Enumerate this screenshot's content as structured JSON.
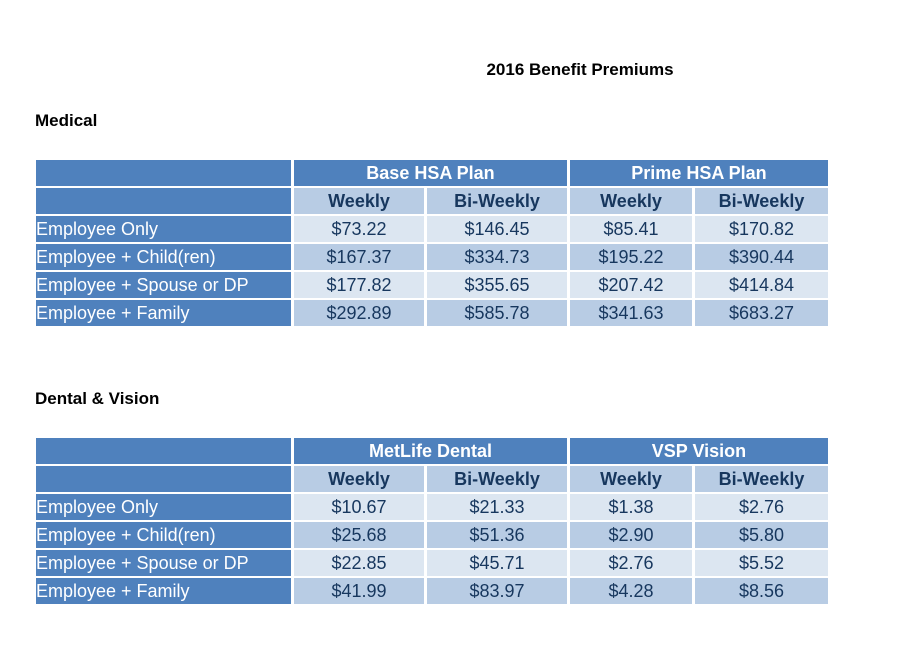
{
  "title": "2016 Benefit Premiums",
  "medical": {
    "heading": "Medical",
    "plans": [
      "Base HSA Plan",
      "Prime HSA Plan"
    ],
    "columns": [
      "Weekly",
      "Bi-Weekly",
      "Weekly",
      "Bi-Weekly"
    ],
    "rows": [
      {
        "label": "Employee Only",
        "values": [
          "$73.22",
          "$146.45",
          "$85.41",
          "$170.82"
        ]
      },
      {
        "label": "Employee + Child(ren)",
        "values": [
          "$167.37",
          "$334.73",
          "$195.22",
          "$390.44"
        ]
      },
      {
        "label": "Employee + Spouse or DP",
        "values": [
          "$177.82",
          "$355.65",
          "$207.42",
          "$414.84"
        ]
      },
      {
        "label": "Employee + Family",
        "values": [
          "$292.89",
          "$585.78",
          "$341.63",
          "$683.27"
        ]
      }
    ]
  },
  "dental_vision": {
    "heading": "Dental & Vision",
    "plans": [
      "MetLife Dental",
      "VSP Vision"
    ],
    "columns": [
      "Weekly",
      "Bi-Weekly",
      "Weekly",
      "Bi-Weekly"
    ],
    "rows": [
      {
        "label": "Employee Only",
        "values": [
          "$10.67",
          "$21.33",
          "$1.38",
          "$2.76"
        ]
      },
      {
        "label": "Employee + Child(ren)",
        "values": [
          "$25.68",
          "$51.36",
          "$2.90",
          "$5.80"
        ]
      },
      {
        "label": "Employee + Spouse or DP",
        "values": [
          "$22.85",
          "$45.71",
          "$2.76",
          "$5.52"
        ]
      },
      {
        "label": "Employee + Family",
        "values": [
          "$41.99",
          "$83.97",
          "$4.28",
          "$8.56"
        ]
      }
    ]
  },
  "colors": {
    "header_blue": "#4f81bd",
    "light_band": "#dce6f1",
    "mid_band": "#b8cce4",
    "value_text": "#17375e"
  }
}
